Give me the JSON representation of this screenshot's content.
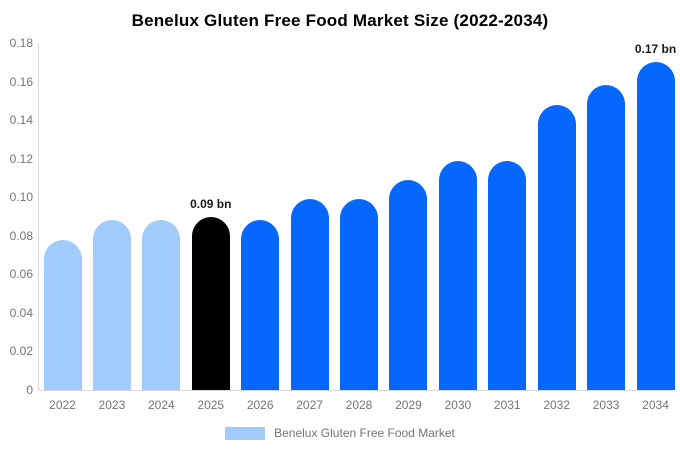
{
  "title": "Benelux Gluten Free Food Market Size (2022-2034)",
  "colors": {
    "bar_past": "#a1cbfa",
    "bar_highlight": "#000000",
    "bar_future": "#0667fc",
    "axis_line": "#d9d9d9",
    "tick_text": "#757575",
    "annotation_text": "#1a1a1a",
    "title_text": "#000000",
    "background": "#ffffff"
  },
  "chart_data": {
    "type": "bar",
    "title": "Benelux Gluten Free Food Market Size (2022-2034)",
    "xlabel": "",
    "ylabel": "",
    "categories": [
      "2022",
      "2023",
      "2024",
      "2025",
      "2026",
      "2027",
      "2028",
      "2029",
      "2030",
      "2031",
      "2032",
      "2033",
      "2034"
    ],
    "values": [
      0.078,
      0.088,
      0.088,
      0.09,
      0.088,
      0.099,
      0.099,
      0.109,
      0.119,
      0.119,
      0.148,
      0.158,
      0.17
    ],
    "unit": "bn",
    "ylim": [
      0,
      0.18
    ],
    "ytick_step": 0.02,
    "ytick_labels": [
      "0",
      "0.02",
      "0.04",
      "0.06",
      "0.08",
      "0.10",
      "0.12",
      "0.14",
      "0.16",
      "0.18"
    ],
    "grid": false,
    "bar_roles": [
      "past",
      "past",
      "past",
      "highlight",
      "future",
      "future",
      "future",
      "future",
      "future",
      "future",
      "future",
      "future",
      "future"
    ],
    "annotations": [
      {
        "category": "2025",
        "label": "0.09 bn"
      },
      {
        "category": "2034",
        "label": "0.17 bn"
      }
    ],
    "legend": {
      "label": "Benelux Gluten Free Food Market",
      "position": "bottom",
      "swatch_role": "past"
    }
  }
}
